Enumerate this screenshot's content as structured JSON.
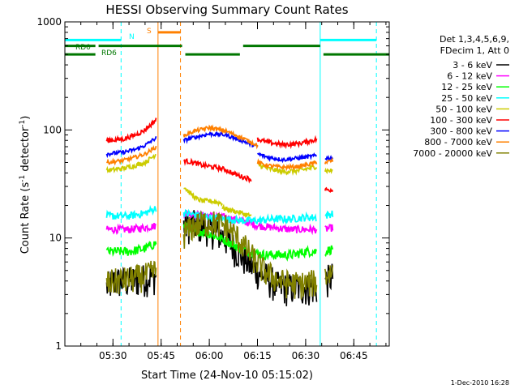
{
  "chart_data": {
    "type": "line",
    "title": "HESSI Observing Summary Count Rates",
    "xlabel": "Start Time (24-Nov-10 05:15:02)",
    "ylabel_main": "Count Rate (s",
    "ylabel_sup1": "-1",
    "ylabel_mid": " detector",
    "ylabel_sup2": "-1",
    "ylabel_end": ")",
    "yscale": "log",
    "ylim": [
      1,
      1000
    ],
    "xlim": [
      0,
      101
    ],
    "x_unit": "minutes after 05:15:02",
    "grid": false,
    "legend_placement": "right",
    "x_ticks": [
      {
        "label": "05:30",
        "value": 14.97
      },
      {
        "label": "05:45",
        "value": 29.97
      },
      {
        "label": "06:00",
        "value": 44.97
      },
      {
        "label": "06:15",
        "value": 59.97
      },
      {
        "label": "06:30",
        "value": 74.97
      },
      {
        "label": "06:45",
        "value": 89.97
      }
    ],
    "y_ticks": [
      {
        "label": "1",
        "value": 1
      },
      {
        "label": "10",
        "value": 10
      },
      {
        "label": "100",
        "value": 100
      },
      {
        "label": "1000",
        "value": 1000
      }
    ],
    "legend_header": [
      "Det 1,3,4,5,6,9,",
      "FDecim 1, Att 0"
    ],
    "series": [
      {
        "name": "3 - 6 keV",
        "color": "#000000",
        "noise": 0.35,
        "segments": [
          {
            "x": [
              13,
              15,
              20,
              25,
              28.5
            ],
            "y": [
              3.5,
              4,
              4,
              4.3,
              4.5
            ]
          },
          {
            "x": [
              37,
              40,
              45,
              50,
              54,
              58,
              62,
              67,
              71,
              75,
              78.5
            ],
            "y": [
              13,
              13.5,
              12.5,
              10,
              7.5,
              5.5,
              4.5,
              3.5,
              3.5,
              3.5,
              3.5
            ]
          },
          {
            "x": [
              81,
              83.5
            ],
            "y": [
              4,
              4.5
            ]
          }
        ]
      },
      {
        "name": "6 - 12 keV",
        "color": "#ff00ff",
        "noise": 0.08,
        "segments": [
          {
            "x": [
              13,
              20,
              25,
              28.5
            ],
            "y": [
              12,
              12,
              12.5,
              13
            ]
          },
          {
            "x": [
              37,
              40,
              45,
              50,
              55,
              60,
              65,
              70,
              75,
              78.5
            ],
            "y": [
              17,
              16.5,
              16,
              15.5,
              14.5,
              13,
              12.5,
              12,
              12,
              12
            ]
          },
          {
            "x": [
              81,
              83.5
            ],
            "y": [
              12,
              12.5
            ]
          }
        ]
      },
      {
        "name": "12 - 25 keV",
        "color": "#00ff00",
        "noise": 0.1,
        "segments": [
          {
            "x": [
              13,
              20,
              25,
              28.5
            ],
            "y": [
              7.5,
              7.5,
              8,
              9
            ]
          },
          {
            "x": [
              37,
              40,
              45,
              50,
              53,
              57,
              62,
              67,
              71,
              75,
              78.5
            ],
            "y": [
              13,
              12,
              11,
              9.5,
              8.5,
              7.5,
              7,
              7,
              7,
              7.5,
              7.5
            ]
          },
          {
            "x": [
              81,
              83.5
            ],
            "y": [
              7.5,
              8
            ]
          }
        ]
      },
      {
        "name": "25 - 50 keV",
        "color": "#00ffff",
        "noise": 0.08,
        "segments": [
          {
            "x": [
              13,
              20,
              25,
              28.5
            ],
            "y": [
              16,
              16,
              17,
              19
            ]
          },
          {
            "x": [
              37,
              40,
              45,
              50,
              55,
              60,
              65,
              70,
              75,
              78.5
            ],
            "y": [
              17,
              16.5,
              15.5,
              15,
              14.5,
              14.5,
              15,
              15,
              15.5,
              15.5
            ]
          },
          {
            "x": [
              81,
              83.5
            ],
            "y": [
              16,
              17
            ]
          }
        ]
      },
      {
        "name": "50 - 100 keV",
        "color": "#cccc00",
        "noise": 0.05,
        "segments": [
          {
            "x": [
              13,
              18,
              22,
              25,
              28.5
            ],
            "y": [
              42,
              44,
              47,
              50,
              60
            ]
          },
          {
            "x": [
              37,
              39,
              41,
              43,
              45,
              47,
              49
            ],
            "y": [
              30,
              26,
              23,
              22,
              22,
              21.5,
              21
            ]
          },
          {
            "x": [
              49,
              52,
              55,
              58
            ],
            "y": [
              19,
              18,
              17,
              16
            ]
          },
          {
            "x": [
              60,
              63,
              68,
              73,
              78.5
            ],
            "y": [
              48,
              44,
              41,
              42,
              46
            ]
          },
          {
            "x": [
              81,
              83.5
            ],
            "y": [
              42,
              42
            ]
          }
        ]
      },
      {
        "name": "100 - 300 keV",
        "color": "#ff0000",
        "noise": 0.05,
        "segments": [
          {
            "x": [
              13,
              18,
              22,
              25,
              28.5
            ],
            "y": [
              80,
              82,
              90,
              100,
              125
            ]
          },
          {
            "x": [
              37,
              40,
              43,
              47,
              50,
              52,
              55,
              58
            ],
            "y": [
              52,
              50,
              47,
              45,
              43,
              40,
              37,
              35
            ]
          },
          {
            "x": [
              60,
              63,
              68,
              73,
              78.5
            ],
            "y": [
              82,
              77,
              73,
              75,
              82
            ]
          },
          {
            "x": [
              81,
              83.5
            ],
            "y": [
              28,
              28
            ]
          }
        ]
      },
      {
        "name": "300 - 800 keV",
        "color": "#0000ff",
        "noise": 0.04,
        "segments": [
          {
            "x": [
              13,
              18,
              22,
              25,
              28.5
            ],
            "y": [
              60,
              62,
              66,
              72,
              85
            ]
          },
          {
            "x": [
              37,
              40,
              45,
              50,
              55,
              60
            ],
            "y": [
              80,
              85,
              92,
              90,
              80,
              70
            ]
          },
          {
            "x": [
              60,
              63,
              68,
              73,
              78.5
            ],
            "y": [
              60,
              56,
              53,
              55,
              58
            ]
          },
          {
            "x": [
              81,
              83.5
            ],
            "y": [
              55,
              55
            ]
          }
        ]
      },
      {
        "name": "800 - 7000 keV",
        "color": "#ff8000",
        "noise": 0.04,
        "segments": [
          {
            "x": [
              13,
              18,
              22,
              25,
              28.5
            ],
            "y": [
              50,
              52,
              56,
              60,
              70
            ]
          },
          {
            "x": [
              37,
              40,
              45,
              50,
              55,
              60
            ],
            "y": [
              88,
              97,
              105,
              98,
              85,
              72
            ]
          },
          {
            "x": [
              60,
              63,
              68,
              73,
              78.5
            ],
            "y": [
              50,
              47,
              45,
              46,
              50
            ]
          },
          {
            "x": [
              81,
              83.5
            ],
            "y": [
              50,
              52
            ]
          }
        ]
      },
      {
        "name": "7000 - 20000 keV",
        "color": "#808000",
        "noise": 0.3,
        "segments": [
          {
            "x": [
              13,
              15,
              20,
              25,
              28.5
            ],
            "y": [
              3.8,
              4,
              4.2,
              4.5,
              5
            ]
          },
          {
            "x": [
              37,
              40,
              43,
              46,
              50,
              54,
              58,
              62,
              67,
              71,
              75,
              78.5
            ],
            "y": [
              11,
              13,
              14,
              14,
              13,
              10,
              7,
              5,
              4,
              3.8,
              3.8,
              4
            ]
          },
          {
            "x": [
              81,
              83.5
            ],
            "y": [
              4.5,
              5
            ]
          }
        ]
      }
    ],
    "flags": [
      {
        "label": "RD0",
        "color": "#007700",
        "value": 600,
        "segments": [
          [
            0,
            9.5
          ],
          [
            10.5,
            36.5
          ],
          [
            55.5,
            79.5
          ]
        ]
      },
      {
        "label": "RD6",
        "color": "#007700",
        "value": 500,
        "segments": [
          [
            0,
            9.5
          ],
          [
            37.5,
            54.5
          ],
          [
            80.5,
            101
          ]
        ]
      },
      {
        "label": "N",
        "color": "#00ffff",
        "value": 680,
        "segments": [
          [
            0,
            17.5
          ],
          [
            79.5,
            97
          ]
        ]
      },
      {
        "label": "S",
        "color": "#ff8000",
        "value": 800,
        "segments": [
          [
            29,
            36
          ]
        ]
      }
    ],
    "vlines": [
      {
        "value": 0,
        "color": "#00ffff",
        "style": "solid"
      },
      {
        "value": 17.5,
        "color": "#00ffff",
        "style": "dashed"
      },
      {
        "value": 29,
        "color": "#ff8000",
        "style": "solid"
      },
      {
        "value": 36,
        "color": "#ff8000",
        "style": "dashed"
      },
      {
        "value": 79.5,
        "color": "#00ffff",
        "style": "solid"
      },
      {
        "value": 97,
        "color": "#00ffff",
        "style": "dashed"
      }
    ],
    "footer_date": "1-Dec-2010 16:28"
  }
}
